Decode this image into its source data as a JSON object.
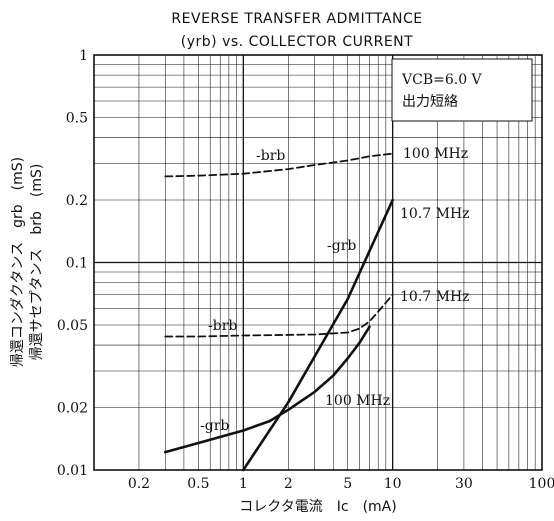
{
  "chart_data": {
    "type": "line",
    "title_line1": "REVERSE TRANSFER ADMITTANCE",
    "title_line2": "(yrb) vs. COLLECTOR CURRENT",
    "xlabel": "コレクタ電流　Ic　(mA)",
    "ylabel_line1": "帰還コンダクタンス　grb　(mS)",
    "ylabel_line2": "帰還サセプタンス　brb　(mS)",
    "x_scale": "log",
    "y_scale": "log",
    "xlim": [
      0.1,
      100
    ],
    "ylim": [
      0.01,
      1
    ],
    "x_ticks": [
      {
        "v": 0.2,
        "label": "0.2"
      },
      {
        "v": 0.5,
        "label": "0.5"
      },
      {
        "v": 1,
        "label": "1"
      },
      {
        "v": 2,
        "label": "2"
      },
      {
        "v": 5,
        "label": "5"
      },
      {
        "v": 10,
        "label": "10"
      },
      {
        "v": 30,
        "label": "30"
      },
      {
        "v": 100,
        "label": "100"
      }
    ],
    "y_ticks": [
      {
        "v": 1,
        "label": "1"
      },
      {
        "v": 0.5,
        "label": "0.5"
      },
      {
        "v": 0.2,
        "label": "0.2"
      },
      {
        "v": 0.1,
        "label": "0.1"
      },
      {
        "v": 0.05,
        "label": "0.05"
      },
      {
        "v": 0.02,
        "label": "0.02"
      },
      {
        "v": 0.01,
        "label": "0.01"
      }
    ],
    "grid": true,
    "condition_box": {
      "line1": "VCB=6.0 V",
      "line2": "出力短絡"
    },
    "series": [
      {
        "name": "-brb 100 MHz",
        "style": "dashed",
        "x": [
          0.3,
          0.5,
          1,
          2,
          3,
          5,
          7,
          10
        ],
        "y": [
          0.26,
          0.262,
          0.268,
          0.282,
          0.295,
          0.31,
          0.325,
          0.335
        ],
        "label": "-brb",
        "end_label": "100  MHz"
      },
      {
        "name": "-grb 10.7 MHz",
        "style": "solid",
        "x": [
          1,
          2,
          5,
          10
        ],
        "y": [
          0.01,
          0.0212,
          0.0667,
          0.2
        ],
        "label": "-grb",
        "end_label": "10.7  MHz"
      },
      {
        "name": "-brb 10.7 MHz",
        "style": "dashed",
        "x": [
          0.3,
          0.5,
          1,
          2,
          3,
          5,
          6,
          7,
          8,
          10
        ],
        "y": [
          0.044,
          0.044,
          0.0445,
          0.0448,
          0.045,
          0.046,
          0.048,
          0.052,
          0.058,
          0.07
        ],
        "label": "-brb",
        "end_label": "10.7  MHz"
      },
      {
        "name": "-grb 100 MHz",
        "style": "solid",
        "x": [
          0.3,
          0.5,
          1,
          1.5,
          2,
          3,
          4,
          5,
          6,
          7
        ],
        "y": [
          0.0122,
          0.0135,
          0.0155,
          0.0172,
          0.0195,
          0.0238,
          0.0285,
          0.0345,
          0.041,
          0.049
        ],
        "label": "-grb",
        "end_label": "100  MHz"
      }
    ]
  }
}
